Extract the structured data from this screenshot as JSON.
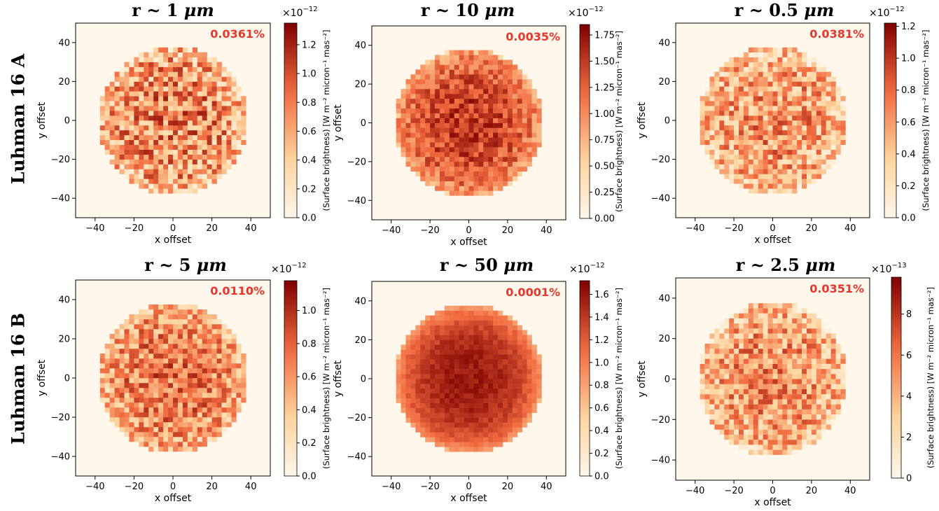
{
  "rows": [
    {
      "label": "Luhman 16 A"
    },
    {
      "label": "Luhman 16 B"
    }
  ],
  "colormap": {
    "name": "OrRd",
    "low": "#fff7ec",
    "mid": "#fdd49e",
    "mid2": "#f16a3f",
    "high": "#7f0000"
  },
  "annotation_color": "#e8362a",
  "chart_data": [
    {
      "type": "heatmap",
      "row": "Luhman 16 A",
      "title_prefix": "r ~ ",
      "title_value": "1",
      "title_unit": "μm",
      "annotation": "0.0361%",
      "xlabel": "x offset",
      "ylabel": "y offset",
      "xlim": [
        -50,
        50
      ],
      "ylim": [
        -50,
        50
      ],
      "xticks": [
        -40,
        -20,
        0,
        20,
        40
      ],
      "yticks": [
        -40,
        -20,
        0,
        20,
        40
      ],
      "disk_radius": 38,
      "disk_mean_fraction": 0.45,
      "spot_contrast": 0.35,
      "colorbar": {
        "label": "(Surface brightness) [W m⁻² micron⁻¹ mas⁻²]",
        "multiplier": "×10",
        "exponent": "−12",
        "min": 0,
        "max": 1.35,
        "ticks": [
          "0.0",
          "0.2",
          "0.4",
          "0.6",
          "0.8",
          "1.0",
          "1.2"
        ],
        "tick_values": [
          0,
          0.2,
          0.4,
          0.6,
          0.8,
          1.0,
          1.2
        ]
      }
    },
    {
      "type": "heatmap",
      "row": "Luhman 16 A",
      "title_prefix": "r ~ ",
      "title_value": "10",
      "title_unit": "μm",
      "annotation": "0.0035%",
      "xlabel": "x offset",
      "ylabel": "y offset",
      "xlim": [
        -50,
        50
      ],
      "ylim": [
        -50,
        50
      ],
      "xticks": [
        -40,
        -20,
        0,
        20,
        40
      ],
      "yticks": [
        -40,
        -20,
        0,
        20,
        40
      ],
      "disk_radius": 38,
      "disk_mean_fraction": 0.68,
      "spot_contrast": 0.18,
      "colorbar": {
        "label": "(Surface brightness) [W m⁻² micron⁻¹ mas⁻²]",
        "multiplier": "×10",
        "exponent": "−12",
        "min": 0,
        "max": 1.85,
        "ticks": [
          "0.00",
          "0.25",
          "0.50",
          "0.75",
          "1.00",
          "1.25",
          "1.50",
          "1.75"
        ],
        "tick_values": [
          0,
          0.25,
          0.5,
          0.75,
          1.0,
          1.25,
          1.5,
          1.75
        ]
      }
    },
    {
      "type": "heatmap",
      "row": "Luhman 16 A",
      "title_prefix": "r ~ ",
      "title_value": "0.5",
      "title_unit": "μm",
      "annotation": "0.0381%",
      "xlabel": "x offset",
      "ylabel": "y offset",
      "xlim": [
        -50,
        50
      ],
      "ylim": [
        -50,
        50
      ],
      "xticks": [
        -40,
        -20,
        0,
        20,
        40
      ],
      "yticks": [
        -40,
        -20,
        0,
        20,
        40
      ],
      "disk_radius": 38,
      "disk_mean_fraction": 0.38,
      "spot_contrast": 0.32,
      "colorbar": {
        "label": "(Surface brightness) [W m⁻² micron⁻¹ mas⁻²]",
        "multiplier": "×10",
        "exponent": "−12",
        "min": 0,
        "max": 1.22,
        "ticks": [
          "0.0",
          "0.2",
          "0.4",
          "0.6",
          "0.8",
          "1.0",
          "1.2"
        ],
        "tick_values": [
          0,
          0.2,
          0.4,
          0.6,
          0.8,
          1.0,
          1.2
        ]
      }
    },
    {
      "type": "heatmap",
      "row": "Luhman 16 B",
      "title_prefix": "r ~ ",
      "title_value": "5",
      "title_unit": "μm",
      "annotation": "0.0110%",
      "xlabel": "x offset",
      "ylabel": "y offset",
      "xlim": [
        -50,
        50
      ],
      "ylim": [
        -50,
        50
      ],
      "xticks": [
        -40,
        -20,
        0,
        20,
        40
      ],
      "yticks": [
        -40,
        -20,
        0,
        20,
        40
      ],
      "disk_radius": 38,
      "disk_mean_fraction": 0.5,
      "spot_contrast": 0.28,
      "colorbar": {
        "label": "(Surface brightness) [W m⁻² micron⁻¹ mas⁻²]",
        "multiplier": "×10",
        "exponent": "−12",
        "min": 0,
        "max": 1.18,
        "ticks": [
          "0.0",
          "0.2",
          "0.4",
          "0.6",
          "0.8",
          "1.0"
        ],
        "tick_values": [
          0,
          0.2,
          0.4,
          0.6,
          0.8,
          1.0
        ]
      }
    },
    {
      "type": "heatmap",
      "row": "Luhman 16 B",
      "title_prefix": "r ~ ",
      "title_value": "50",
      "title_unit": "μm",
      "annotation": "0.0001%",
      "xlabel": "x offset",
      "ylabel": "y offset",
      "xlim": [
        -50,
        50
      ],
      "ylim": [
        -50,
        50
      ],
      "xticks": [
        -40,
        -20,
        0,
        20,
        40
      ],
      "yticks": [
        -40,
        -20,
        0,
        20,
        40
      ],
      "disk_radius": 38,
      "disk_mean_fraction": 0.8,
      "spot_contrast": 0.06,
      "colorbar": {
        "label": "(Surface brightness) [W m⁻² micron⁻¹ mas⁻²]",
        "multiplier": "×10",
        "exponent": "−12",
        "min": 0,
        "max": 1.72,
        "ticks": [
          "0.0",
          "0.2",
          "0.4",
          "0.6",
          "0.8",
          "1.0",
          "1.2",
          "1.4",
          "1.6"
        ],
        "tick_values": [
          0,
          0.2,
          0.4,
          0.6,
          0.8,
          1.0,
          1.2,
          1.4,
          1.6
        ]
      }
    },
    {
      "type": "heatmap",
      "row": "Luhman 16 B",
      "title_prefix": "r ~ ",
      "title_value": "2.5",
      "title_unit": "μm",
      "annotation": "0.0351%",
      "xlabel": "x offset",
      "ylabel": "y offset",
      "xlim": [
        -50,
        50
      ],
      "ylim": [
        -50,
        50
      ],
      "xticks": [
        -40,
        -20,
        0,
        20,
        40
      ],
      "yticks": [
        -40,
        -20,
        0,
        20,
        40
      ],
      "disk_radius": 38,
      "disk_mean_fraction": 0.4,
      "spot_contrast": 0.3,
      "colorbar": {
        "label": "(Surface brightness) [W m⁻² micron⁻¹ mas⁻²]",
        "multiplier": "×10",
        "exponent": "−13",
        "min": 0,
        "max": 9.8,
        "ticks": [
          "0",
          "2",
          "4",
          "6",
          "8"
        ],
        "tick_values": [
          0,
          2,
          4,
          6,
          8
        ]
      }
    }
  ]
}
